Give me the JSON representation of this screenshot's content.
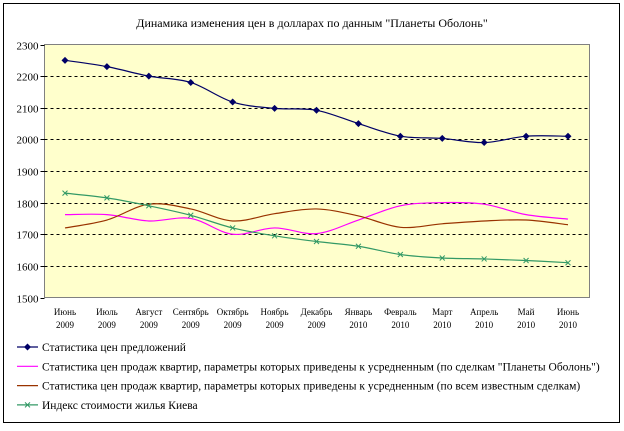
{
  "chart_data": {
    "type": "line",
    "title": "Динамика изменения цен в долларах по данным \"Планеты Оболонь\"",
    "xlabel": "",
    "ylabel": "",
    "ylim": [
      1500,
      2300
    ],
    "yticks": [
      1500,
      1600,
      1700,
      1800,
      1900,
      2000,
      2100,
      2200,
      2300
    ],
    "grid": true,
    "legend_placement": "bottom",
    "plot_background": "#FFFFCC",
    "categories": [
      [
        "Июнь",
        "2009"
      ],
      [
        "Июль",
        "2009"
      ],
      [
        "Август",
        "2009"
      ],
      [
        "Сентябрь",
        "2009"
      ],
      [
        "Октябрь",
        "2009"
      ],
      [
        "Ноябрь",
        "2009"
      ],
      [
        "Декабрь",
        "2009"
      ],
      [
        "Январь",
        "2010"
      ],
      [
        "Февраль",
        "2010"
      ],
      [
        "Март",
        "2010"
      ],
      [
        "Апрель",
        "2010"
      ],
      [
        "Май",
        "2010"
      ],
      [
        "Июнь",
        "2010"
      ]
    ],
    "series": [
      {
        "name": "Статистика цен  предложений",
        "color": "#000066",
        "marker": "diamond",
        "values": [
          2250,
          2230,
          2200,
          2180,
          2118,
          2098,
          2092,
          2050,
          2010,
          2003,
          1990,
          2010,
          2010
        ]
      },
      {
        "name": "Статистика цен продаж квартир, параметры которых приведены к усредненным (по сделкам \"Планеты Оболонь\")",
        "color": "#FF00FF",
        "marker": "none",
        "values": [
          1762,
          1762,
          1742,
          1750,
          1700,
          1720,
          1702,
          1745,
          1790,
          1800,
          1795,
          1762,
          1748
        ]
      },
      {
        "name": "Статистика цен продаж квартир, параметры которых приведены к усредненным (по всем известным сделкам)",
        "color": "#993300",
        "marker": "none",
        "values": [
          1720,
          1745,
          1795,
          1780,
          1742,
          1765,
          1780,
          1758,
          1722,
          1733,
          1742,
          1745,
          1730
        ]
      },
      {
        "name": "Индекс стоимости жилья Киева",
        "color": "#339966",
        "marker": "x",
        "values": [
          1830,
          1815,
          1790,
          1760,
          1720,
          1695,
          1677,
          1662,
          1636,
          1625,
          1622,
          1617,
          1610
        ]
      }
    ]
  }
}
